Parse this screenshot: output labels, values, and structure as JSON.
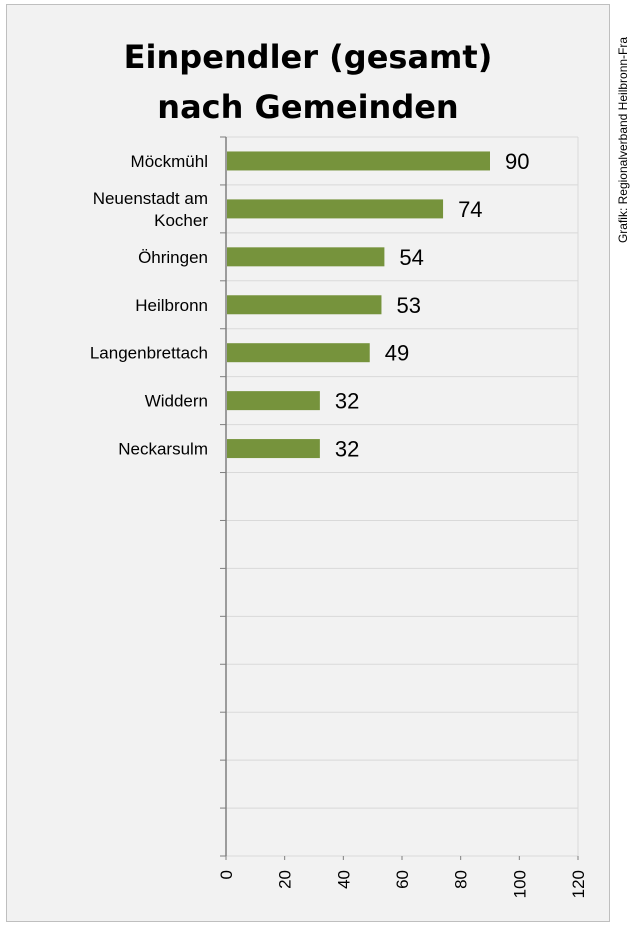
{
  "title_lines": [
    "Einpendler (gesamt)",
    "nach Gemeinden"
  ],
  "credit": "Grafik: Regionalverband Heilbronn-Fra",
  "colors": {
    "bar": "#76933c",
    "grid": "#d9d9d9",
    "axis": "#7f7f7f",
    "background": "#f2f2f2"
  },
  "chart_data": {
    "type": "bar",
    "orientation": "horizontal",
    "title": "Einpendler (gesamt) nach Gemeinden",
    "categories": [
      [
        "Möckmühl"
      ],
      [
        "Neuenstadt am",
        "Kocher"
      ],
      [
        "Öhringen"
      ],
      [
        "Heilbronn"
      ],
      [
        "Langenbrettach"
      ],
      [
        "Widdern"
      ],
      [
        "Neckarsulm"
      ]
    ],
    "values": [
      90,
      74,
      54,
      53,
      49,
      32,
      32
    ],
    "data_labels": [
      "90",
      "74",
      "54",
      "53",
      "49",
      "32",
      "32"
    ],
    "total_slots": 15,
    "xlim": [
      0,
      120
    ],
    "x_ticks": [
      0,
      20,
      40,
      60,
      80,
      100,
      120
    ],
    "x_tick_labels": [
      "0",
      "20",
      "40",
      "60",
      "80",
      "100",
      "120"
    ],
    "tick_label_rotation": "vertical",
    "grid": true,
    "legend": "none"
  }
}
